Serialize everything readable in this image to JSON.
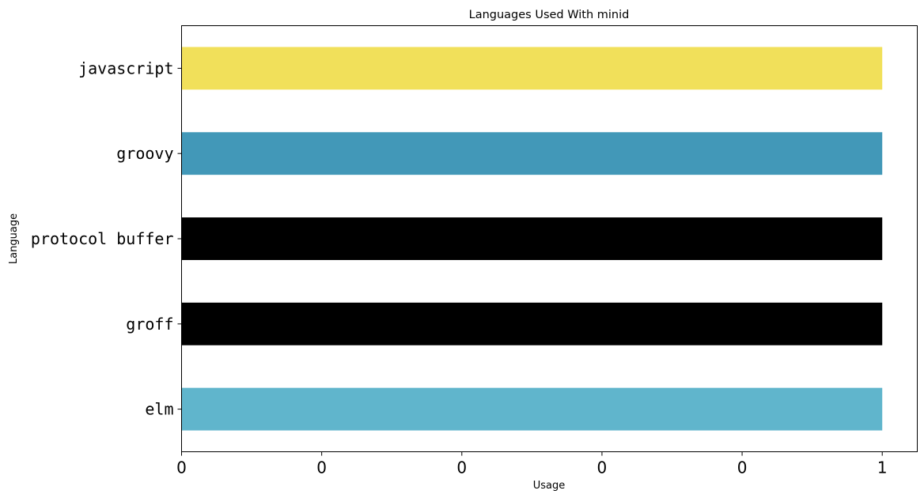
{
  "chart_data": {
    "type": "bar",
    "orientation": "horizontal",
    "title": "Languages Used With minid",
    "xlabel": "Usage",
    "ylabel": "Language",
    "categories": [
      "javascript",
      "groovy",
      "protocol buffer",
      "groff",
      "elm"
    ],
    "values": [
      1,
      1,
      1,
      1,
      1
    ],
    "colors": [
      "#f1e05a",
      "#4298b8",
      "#000000",
      "#000000",
      "#60b5cc"
    ],
    "xlim": [
      0,
      1.05
    ],
    "xticks": [
      0,
      0.2,
      0.4,
      0.6,
      0.8,
      1.0
    ],
    "xtick_labels": [
      "0",
      "0",
      "0",
      "0",
      "0",
      "1"
    ],
    "grid": false,
    "legend": "none"
  }
}
